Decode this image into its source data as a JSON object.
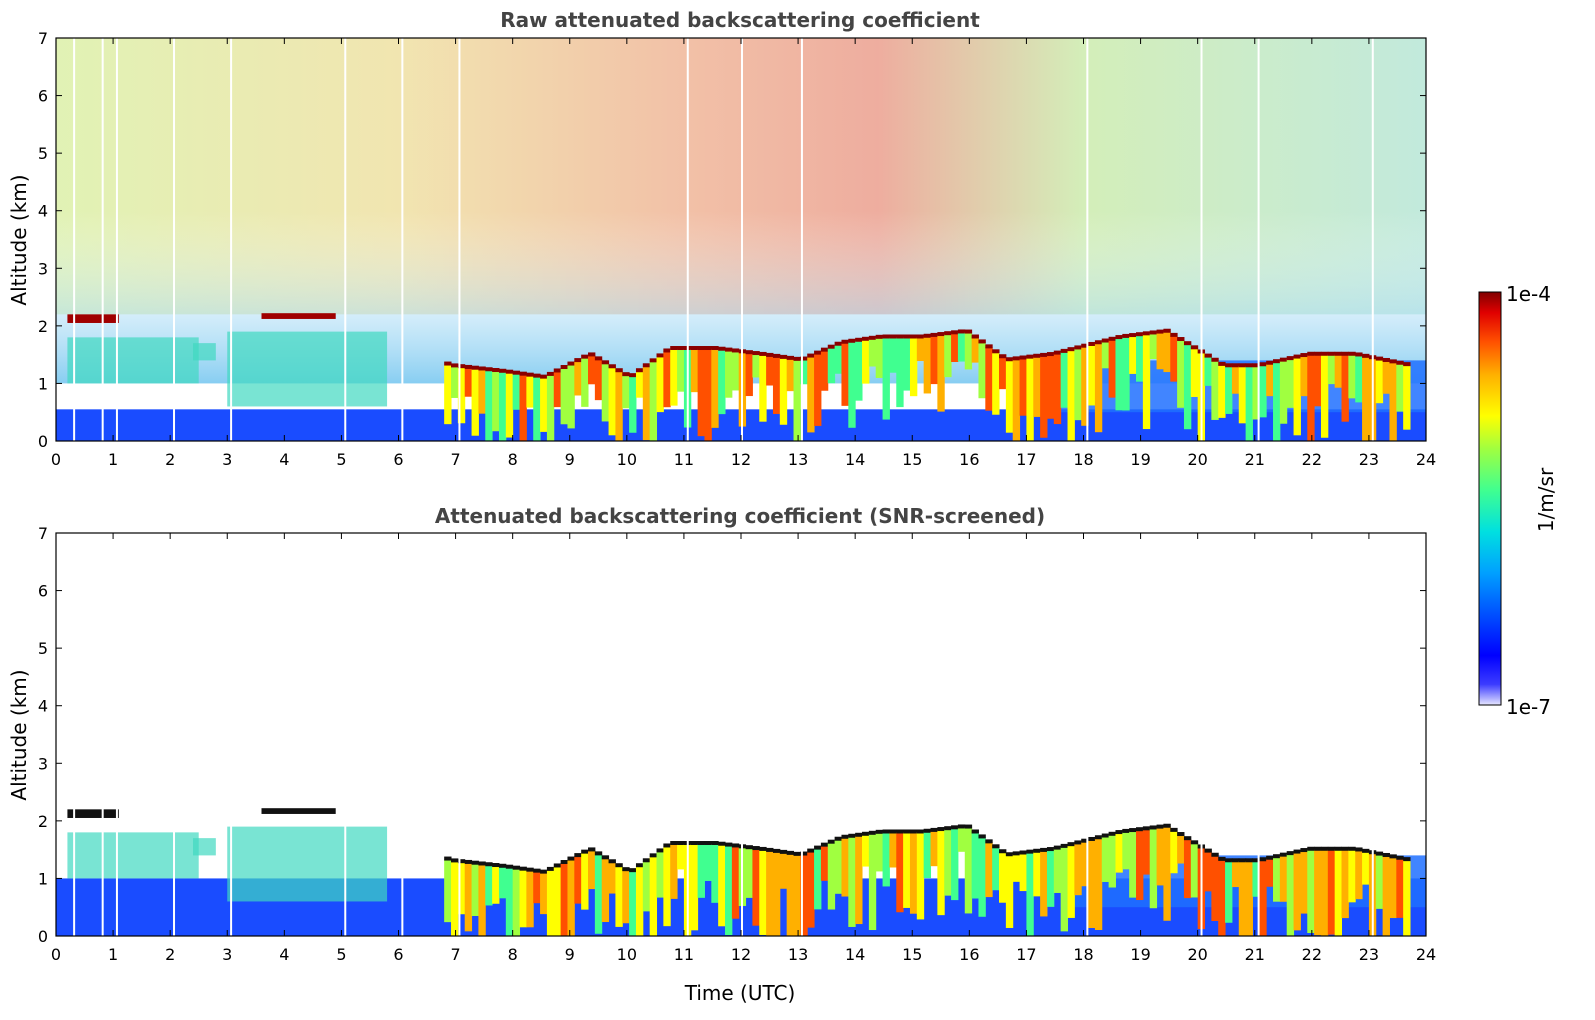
{
  "chart_data": [
    {
      "type": "heatmap",
      "title": "Raw attenuated backscattering coefficient",
      "xlabel": "",
      "ylabel": "Altitude (km)",
      "xlim": [
        0,
        24
      ],
      "ylim": [
        0,
        7
      ],
      "xticks": [
        "0",
        "1",
        "2",
        "3",
        "4",
        "5",
        "6",
        "7",
        "8",
        "9",
        "10",
        "11",
        "12",
        "13",
        "14",
        "15",
        "16",
        "17",
        "18",
        "19",
        "20",
        "21",
        "22",
        "23",
        "24"
      ],
      "yticks": [
        "0",
        "1",
        "2",
        "3",
        "4",
        "5",
        "6",
        "7"
      ],
      "cloud_base_km": [
        [
          0.3,
          2.1
        ],
        [
          3.9,
          2.2
        ],
        [
          6.9,
          1.3
        ],
        [
          7.8,
          1.2
        ],
        [
          8.5,
          1.1
        ],
        [
          9.3,
          1.5
        ],
        [
          10.0,
          1.1
        ],
        [
          10.7,
          1.6
        ],
        [
          11.5,
          1.6
        ],
        [
          12.3,
          1.5
        ],
        [
          13.0,
          1.4
        ],
        [
          13.7,
          1.7
        ],
        [
          14.4,
          1.8
        ],
        [
          15.1,
          1.8
        ],
        [
          15.9,
          1.9
        ],
        [
          16.6,
          1.4
        ],
        [
          17.4,
          1.5
        ],
        [
          18.6,
          1.8
        ],
        [
          19.4,
          1.9
        ],
        [
          20.4,
          1.3
        ],
        [
          21.0,
          1.3
        ],
        [
          21.9,
          1.5
        ],
        [
          22.7,
          1.5
        ],
        [
          23.7,
          1.3
        ]
      ]
    },
    {
      "type": "heatmap",
      "title": "Attenuated backscattering coefficient (SNR-screened)",
      "xlabel": "Time (UTC)",
      "ylabel": "Altitude (km)",
      "xlim": [
        0,
        24
      ],
      "ylim": [
        0,
        7
      ],
      "xticks": [
        "0",
        "1",
        "2",
        "3",
        "4",
        "5",
        "6",
        "7",
        "8",
        "9",
        "10",
        "11",
        "12",
        "13",
        "14",
        "15",
        "16",
        "17",
        "18",
        "19",
        "20",
        "21",
        "22",
        "23",
        "24"
      ],
      "yticks": [
        "0",
        "1",
        "2",
        "3",
        "4",
        "5",
        "6",
        "7"
      ]
    }
  ],
  "colorbar": {
    "label": "1/m/sr",
    "max_label": "1e-4",
    "min_label": "1e-7",
    "colors": [
      "#e6e6ff",
      "#3c3cff",
      "#0000ff",
      "#0050ff",
      "#00a0ff",
      "#00e0e0",
      "#40ff90",
      "#a0ff40",
      "#ffff00",
      "#ffb000",
      "#ff5000",
      "#e00000",
      "#800000"
    ]
  }
}
